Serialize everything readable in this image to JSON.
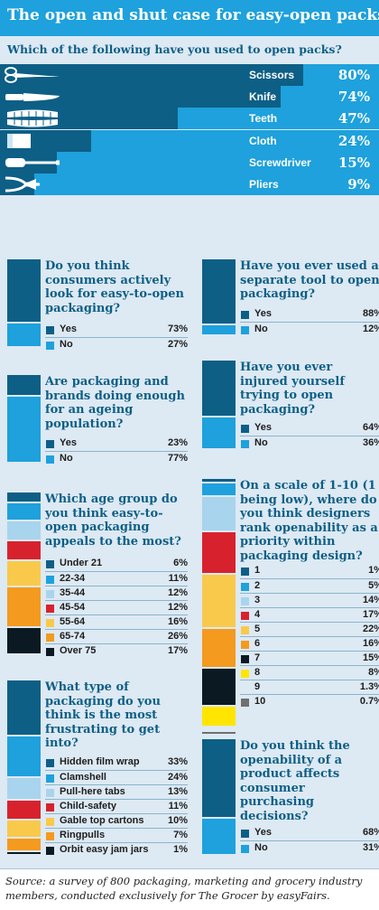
{
  "title": "The open and shut case for easy-open packs",
  "colors": {
    "dark": "#0d5f86",
    "light": "#1ea1dc"
  },
  "chart_data": [
    {
      "type": "bar",
      "title": "Which of the following have you used to open packs?",
      "categories": [
        "Scissors",
        "Knife",
        "Teeth",
        "Cloth",
        "Screwdriver",
        "Pliers"
      ],
      "values": [
        "80%",
        "74%",
        "47%",
        "24%",
        "15%",
        "9%"
      ],
      "icons": [
        "scissors-icon",
        "knife-icon",
        "teeth-icon",
        "cloth-icon",
        "screwdriver-icon",
        "pliers-icon"
      ]
    },
    {
      "type": "bar",
      "title": "Do you think consumers actively look for easy-to-open packaging?",
      "categories": [
        "Yes",
        "No"
      ],
      "values": [
        "73%",
        "27%"
      ],
      "colors": [
        "#0d5f86",
        "#1ea1dc"
      ]
    },
    {
      "type": "bar",
      "title": "Have you ever used a separate tool to open packaging?",
      "categories": [
        "Yes",
        "No"
      ],
      "values": [
        "88%",
        "12%"
      ],
      "colors": [
        "#0d5f86",
        "#1ea1dc"
      ]
    },
    {
      "type": "bar",
      "title": "Are packaging and brands doing enough for an ageing population?",
      "categories": [
        "Yes",
        "No"
      ],
      "values": [
        "23%",
        "77%"
      ],
      "colors": [
        "#0d5f86",
        "#1ea1dc"
      ]
    },
    {
      "type": "bar",
      "title": "Have you ever injured yourself trying to open packaging?",
      "categories": [
        "Yes",
        "No"
      ],
      "values": [
        "64%",
        "36%"
      ],
      "colors": [
        "#0d5f86",
        "#1ea1dc"
      ]
    },
    {
      "type": "bar",
      "title": "Which age group do you think easy-to-open packaging appeals to the most?",
      "categories": [
        "Under 21",
        "22-34",
        "35-44",
        "45-54",
        "55-64",
        "65-74",
        "Over 75"
      ],
      "values": [
        "6%",
        "11%",
        "12%",
        "12%",
        "16%",
        "26%",
        "17%"
      ],
      "colors": [
        "#0d5f86",
        "#1ea1dc",
        "#a9d4ee",
        "#d7222e",
        "#f9c94c",
        "#f39a1f",
        "#0b1a22"
      ]
    },
    {
      "type": "bar",
      "title": "On a scale of 1-10 (1 being low), where do you think designers rank openability as a priority within packaging design?",
      "categories": [
        "1",
        "2",
        "3",
        "4",
        "5",
        "6",
        "7",
        "8",
        "9",
        "10"
      ],
      "values": [
        "1%",
        "5%",
        "14%",
        "17%",
        "22%",
        "16%",
        "15%",
        "8%",
        "1.3%",
        "0.7%"
      ],
      "colors": [
        "#0d5f86",
        "#1ea1dc",
        "#a9d4ee",
        "#d7222e",
        "#f9c94c",
        "#f39a1f",
        "#0b1a22",
        "#ffe500",
        "#dde9f3",
        "#707070"
      ]
    },
    {
      "type": "bar",
      "title": "What type of packaging do you think is the most frustrating to get into?",
      "categories": [
        "Hidden film wrap",
        "Clamshell",
        "Pull-here tabs",
        "Child-safety",
        "Gable top cartons",
        "Ringpulls",
        "Orbit easy jam jars"
      ],
      "values": [
        "33%",
        "24%",
        "13%",
        "11%",
        "10%",
        "7%",
        "1%"
      ],
      "colors": [
        "#0d5f86",
        "#1ea1dc",
        "#a9d4ee",
        "#d7222e",
        "#f9c94c",
        "#f39a1f",
        "#0b1a22"
      ]
    },
    {
      "type": "bar",
      "title": "Do you think the openability of a product affects consumer purchasing decisions?",
      "categories": [
        "Yes",
        "No"
      ],
      "values": [
        "68%",
        "31%"
      ],
      "colors": [
        "#0d5f86",
        "#1ea1dc"
      ]
    }
  ],
  "source": "Source: a survey of 800 packaging, marketing and grocery industry members, conducted exclusively for The Grocer by easyFairs."
}
